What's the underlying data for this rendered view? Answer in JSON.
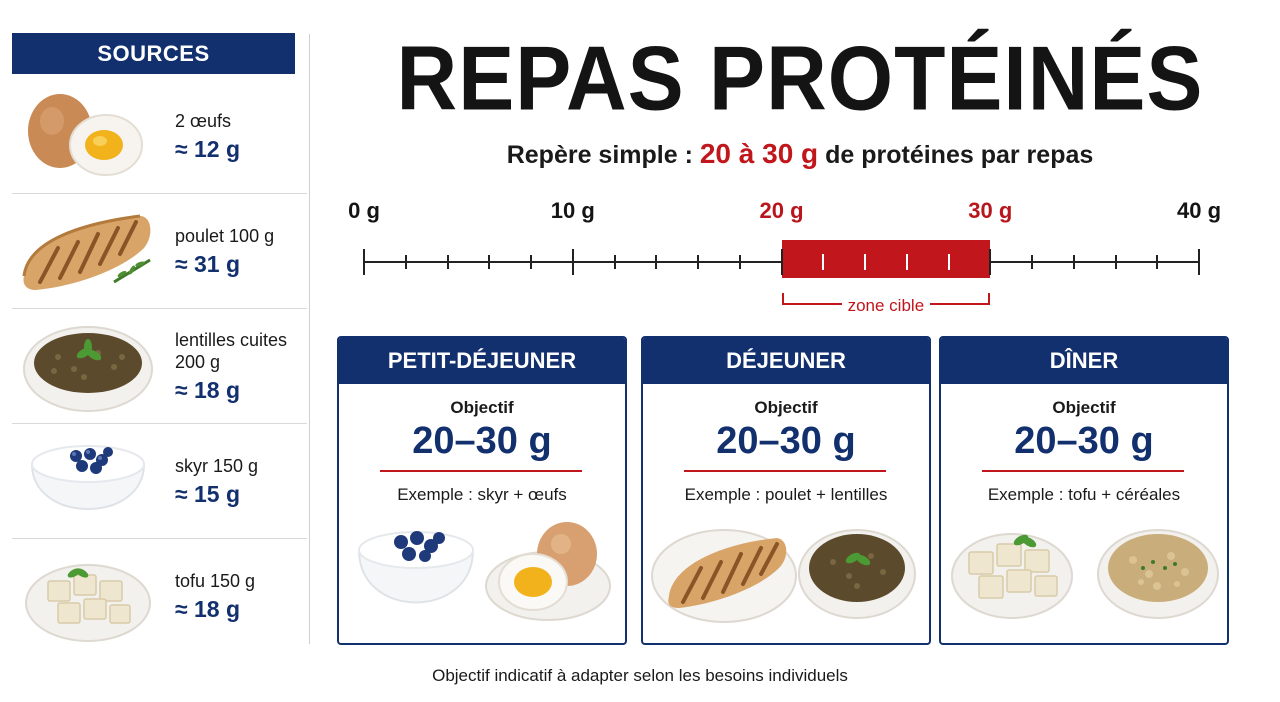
{
  "sidebar": {
    "title": "SOURCES",
    "items": [
      {
        "name": "2 œufs",
        "value": "≈ 12 g",
        "icon": "eggs-icon"
      },
      {
        "name": "poulet 100 g",
        "value": "≈ 31 g",
        "icon": "chicken-icon"
      },
      {
        "name": "lentilles cuites 200 g",
        "value": "≈ 18 g",
        "icon": "lentils-icon"
      },
      {
        "name": "skyr 150 g",
        "value": "≈ 15 g",
        "icon": "skyr-icon"
      },
      {
        "name": "tofu 150 g",
        "value": "≈ 18 g",
        "icon": "tofu-icon"
      }
    ]
  },
  "title": "REPAS PROTÉINÉS",
  "subtitle": {
    "prefix": "Repère simple : ",
    "highlight": "20 à 30 g",
    "suffix": " de protéines par repas"
  },
  "scale": {
    "min": 0,
    "max": 40,
    "labels": [
      {
        "value": 0,
        "text": "0 g"
      },
      {
        "value": 10,
        "text": "10 g"
      },
      {
        "value": 20,
        "text": "20 g"
      },
      {
        "value": 30,
        "text": "30 g"
      },
      {
        "value": 40,
        "text": "40 g"
      }
    ],
    "target": [
      20,
      30
    ],
    "target_label": "zone cible"
  },
  "meals": [
    {
      "title": "PETIT-DÉJEUNER",
      "objective_label": "Objectif",
      "objective_value": "20–30 g",
      "example": "Exemple : skyr + œufs",
      "images": [
        "skyr-icon",
        "egg-plate-icon"
      ]
    },
    {
      "title": "DÉJEUNER",
      "objective_label": "Objectif",
      "objective_value": "20–30 g",
      "example": "Exemple : poulet + lentilles",
      "images": [
        "chicken-plate-icon",
        "lentils-bowl-icon"
      ]
    },
    {
      "title": "DÎNER",
      "objective_label": "Objectif",
      "objective_value": "20–30 g",
      "example": "Exemple : tofu + céréales",
      "images": [
        "tofu-bowl-icon",
        "cereal-bowl-icon"
      ]
    }
  ],
  "footnote": "Objectif indicatif à adapter selon les besoins individuels",
  "colors": {
    "navy": "#13306e",
    "red": "#c0161c"
  }
}
